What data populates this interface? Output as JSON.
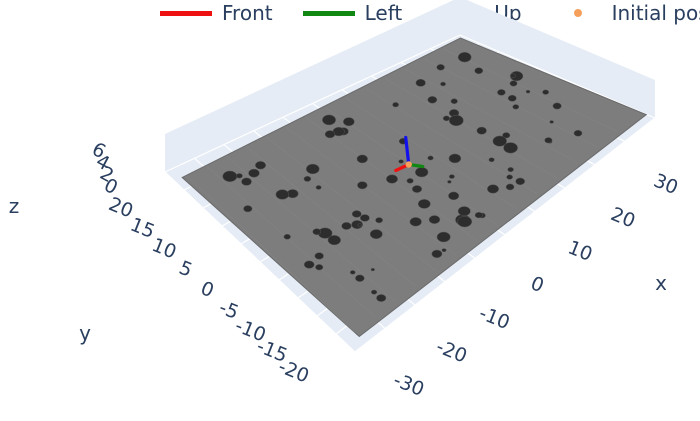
{
  "legend": {
    "items": [
      {
        "label": "Front",
        "color": "#ee1111",
        "kind": "line"
      },
      {
        "label": "Left",
        "color": "#118811",
        "kind": "line"
      },
      {
        "label": "Up",
        "color": "#1111ee",
        "kind": "line"
      },
      {
        "label": "Initial pose",
        "color": "#f5a05a",
        "kind": "marker"
      }
    ]
  },
  "chart_data": {
    "type": "scatter3d",
    "surface_color": "#7d7d7d",
    "axes": {
      "x": {
        "title": "x",
        "ticks": [
          "-30",
          "-20",
          "-10",
          "0",
          "10",
          "20",
          "30"
        ],
        "range": [
          -35,
          35
        ]
      },
      "y": {
        "title": "y",
        "ticks": [
          "-20",
          "-15",
          "-10",
          "-5",
          "0",
          "5",
          "10",
          "15",
          "20"
        ],
        "range": [
          -22,
          22
        ]
      },
      "z": {
        "title": "z",
        "ticks": [
          "0",
          "2",
          "4",
          "6"
        ],
        "range": [
          -1,
          7
        ]
      }
    },
    "initial_pose": {
      "x": 0,
      "y": 0,
      "z": 0
    },
    "pose_axes": [
      {
        "name": "Front",
        "color": "#ee1111",
        "dir": [
          1,
          0,
          0
        ]
      },
      {
        "name": "Left",
        "color": "#118811",
        "dir": [
          0,
          1,
          0
        ]
      },
      {
        "name": "Up",
        "color": "#1111ee",
        "dir": [
          0,
          0,
          1
        ]
      }
    ],
    "grid": true,
    "legend_position": "top"
  }
}
